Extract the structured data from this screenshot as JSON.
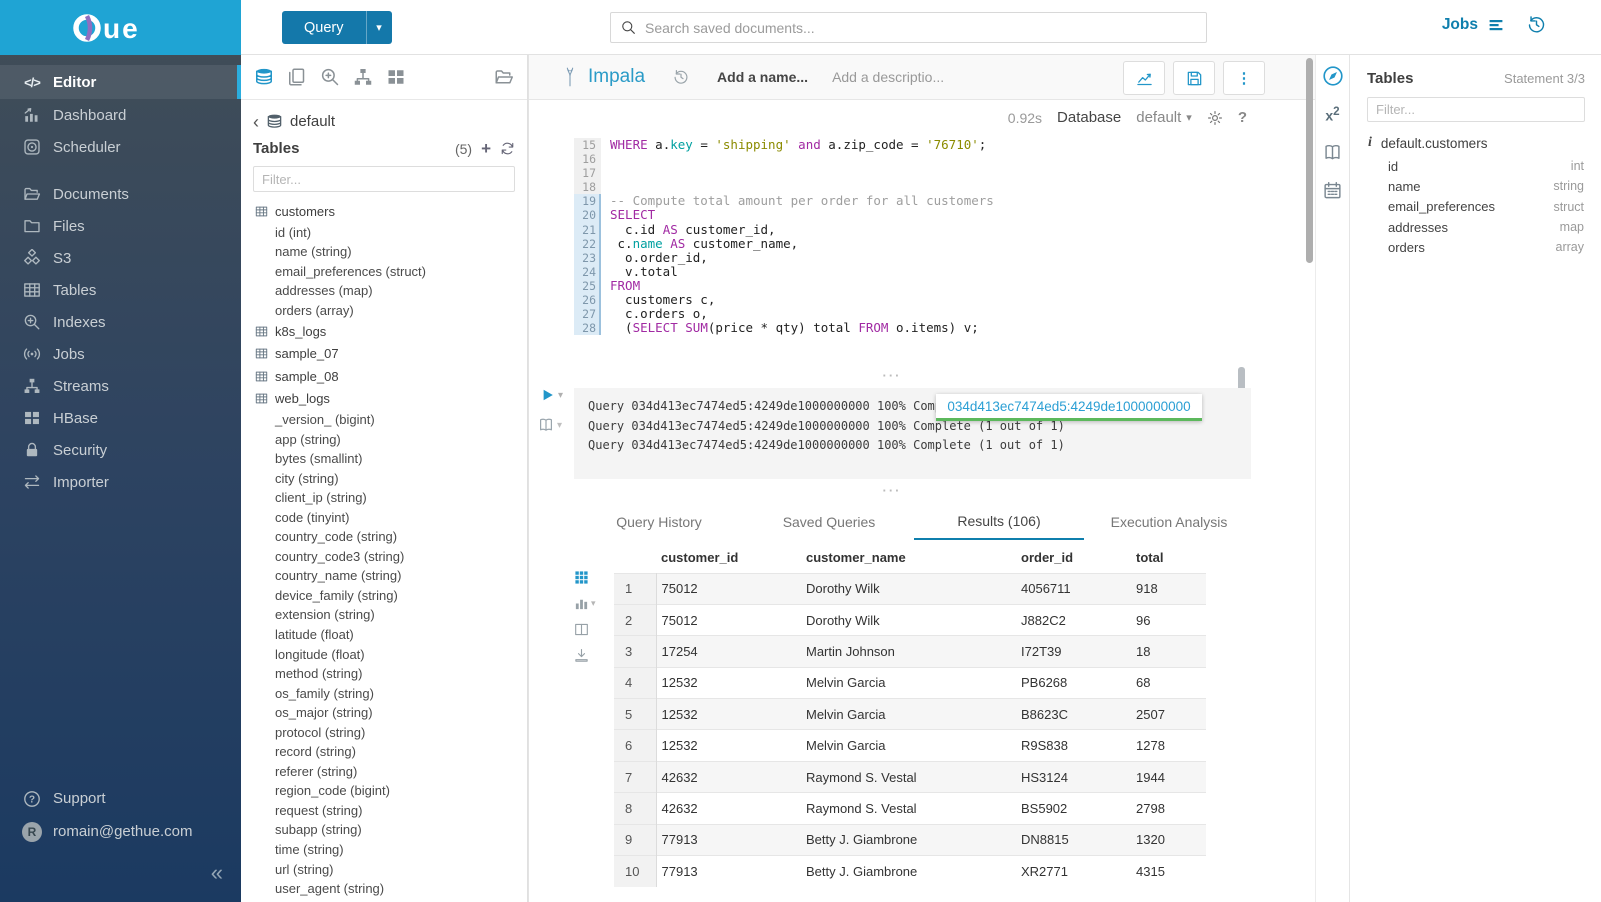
{
  "brand": {
    "logo_text": "hue",
    "logo_suffix": "ue"
  },
  "topbar": {
    "query_button": "Query",
    "query_caret": "▾",
    "search_placeholder": "Search saved documents...",
    "jobs_label": "Jobs"
  },
  "sidebar": {
    "items": [
      {
        "label": "Editor",
        "icon": "code-icon",
        "active": true
      },
      {
        "label": "Dashboard",
        "icon": "dashboard-icon"
      },
      {
        "label": "Scheduler",
        "icon": "scheduler-icon"
      },
      {
        "label": "Documents",
        "icon": "documents-icon",
        "gap": true
      },
      {
        "label": "Files",
        "icon": "folder-icon"
      },
      {
        "label": "S3",
        "icon": "s3-icon"
      },
      {
        "label": "Tables",
        "icon": "tables-icon"
      },
      {
        "label": "Indexes",
        "icon": "indexes-icon"
      },
      {
        "label": "Jobs",
        "icon": "jobs-icon"
      },
      {
        "label": "Streams",
        "icon": "streams-icon"
      },
      {
        "label": "HBase",
        "icon": "hbase-icon"
      },
      {
        "label": "Security",
        "icon": "security-icon"
      },
      {
        "label": "Importer",
        "icon": "importer-icon"
      }
    ],
    "support_label": "Support",
    "user_email": "romain@gethue.com",
    "user_avatar": "R",
    "collapse_icon": "«"
  },
  "left_assist": {
    "database": "default",
    "tables_header": "Tables",
    "tables_count": "(5)",
    "add_label": "+",
    "filter_placeholder": "Filter...",
    "tree": [
      {
        "name": "customers",
        "columns": [
          "id (int)",
          "name (string)",
          "email_preferences (struct)",
          "addresses (map)",
          "orders (array)"
        ]
      },
      {
        "name": "k8s_logs",
        "columns": []
      },
      {
        "name": "sample_07",
        "columns": []
      },
      {
        "name": "sample_08",
        "columns": []
      },
      {
        "name": "web_logs",
        "columns": [
          "_version_ (bigint)",
          "app (string)",
          "bytes (smallint)",
          "city (string)",
          "client_ip (string)",
          "code (tinyint)",
          "country_code (string)",
          "country_code3 (string)",
          "country_name (string)",
          "device_family (string)",
          "extension (string)",
          "latitude (float)",
          "longitude (float)",
          "method (string)",
          "os_family (string)",
          "os_major (string)",
          "protocol (string)",
          "record (string)",
          "referer (string)",
          "region_code (bigint)",
          "request (string)",
          "subapp (string)",
          "time (string)",
          "url (string)",
          "user_agent (string)"
        ]
      }
    ]
  },
  "editor": {
    "engine": "Impala",
    "name_placeholder": "Add a name...",
    "description_placeholder": "Add a descriptio...",
    "duration": "0.92s",
    "database_label": "Database",
    "database_value": "default",
    "code_lines": [
      {
        "n": "15",
        "active": false,
        "tokens": [
          [
            "k",
            "WHERE"
          ],
          [
            "d",
            " a."
          ],
          [
            "v",
            "key"
          ],
          [
            "d",
            " = "
          ],
          [
            "s",
            "'shipping'"
          ],
          [
            "k",
            " and"
          ],
          [
            "d",
            " a.zip_code = "
          ],
          [
            "s",
            "'76710'"
          ],
          [
            "d",
            ";"
          ]
        ]
      },
      {
        "n": "16",
        "active": false,
        "tokens": []
      },
      {
        "n": "17",
        "active": false,
        "tokens": []
      },
      {
        "n": "18",
        "active": false,
        "tokens": []
      },
      {
        "n": "19",
        "active": true,
        "tokens": [
          [
            "c",
            "-- Compute total amount per order for all customers"
          ]
        ]
      },
      {
        "n": "20",
        "active": true,
        "tokens": [
          [
            "k",
            "SELECT"
          ]
        ]
      },
      {
        "n": "21",
        "active": true,
        "tokens": [
          [
            "d",
            "  c.id "
          ],
          [
            "k",
            "AS"
          ],
          [
            "d",
            " customer_id,"
          ]
        ]
      },
      {
        "n": "22",
        "active": true,
        "tokens": [
          [
            "d",
            " c."
          ],
          [
            "v",
            "name"
          ],
          [
            "d",
            " "
          ],
          [
            "k",
            "AS"
          ],
          [
            "d",
            " customer_name,"
          ]
        ]
      },
      {
        "n": "23",
        "active": true,
        "tokens": [
          [
            "d",
            "  o.order_id,"
          ]
        ]
      },
      {
        "n": "24",
        "active": true,
        "tokens": [
          [
            "d",
            "  v.total"
          ]
        ]
      },
      {
        "n": "25",
        "active": true,
        "tokens": [
          [
            "k",
            "FROM"
          ]
        ]
      },
      {
        "n": "26",
        "active": true,
        "tokens": [
          [
            "d",
            "  customers c,"
          ]
        ]
      },
      {
        "n": "27",
        "active": true,
        "tokens": [
          [
            "d",
            "  c.orders o,"
          ]
        ]
      },
      {
        "n": "28",
        "active": true,
        "tokens": [
          [
            "d",
            "  ("
          ],
          [
            "k",
            "SELECT"
          ],
          [
            "d",
            " "
          ],
          [
            "k",
            "SUM"
          ],
          [
            "d",
            "(price * qty) total "
          ],
          [
            "k",
            "FROM"
          ],
          [
            "d",
            " o.items) v;"
          ]
        ]
      }
    ],
    "logs": [
      "Query 034d413ec7474ed5:4249de1000000000 100% Complete (1 out of 1)",
      "Query 034d413ec7474ed5:4249de1000000000 100% Complete (1 out of 1)",
      "Query 034d413ec7474ed5:4249de1000000000 100% Complete (1 out of 1)"
    ],
    "log_tooltip": "034d413ec7474ed5:4249de1000000000",
    "tabs": [
      {
        "label": "Query History",
        "active": false
      },
      {
        "label": "Saved Queries",
        "active": false
      },
      {
        "label": "Results (106)",
        "active": true
      },
      {
        "label": "Execution Analysis",
        "active": false
      }
    ],
    "results": {
      "columns": [
        "customer_id",
        "customer_name",
        "order_id",
        "total"
      ],
      "rows": [
        [
          "1",
          "75012",
          "Dorothy Wilk",
          "4056711",
          "918"
        ],
        [
          "2",
          "75012",
          "Dorothy Wilk",
          "J882C2",
          "96"
        ],
        [
          "3",
          "17254",
          "Martin Johnson",
          "I72T39",
          "18"
        ],
        [
          "4",
          "12532",
          "Melvin Garcia",
          "PB6268",
          "68"
        ],
        [
          "5",
          "12532",
          "Melvin Garcia",
          "B8623C",
          "2507"
        ],
        [
          "6",
          "12532",
          "Melvin Garcia",
          "R9S838",
          "1278"
        ],
        [
          "7",
          "42632",
          "Raymond S. Vestal",
          "HS3124",
          "1944"
        ],
        [
          "8",
          "42632",
          "Raymond S. Vestal",
          "BS5902",
          "2798"
        ],
        [
          "9",
          "77913",
          "Betty J. Giambrone",
          "DN8815",
          "1320"
        ],
        [
          "10",
          "77913",
          "Betty J. Giambrone",
          "XR2771",
          "4315"
        ]
      ]
    }
  },
  "right_assist": {
    "title": "Tables",
    "statement": "Statement 3/3",
    "filter_placeholder": "Filter...",
    "table_name": "default.customers",
    "columns": [
      {
        "name": "id",
        "type": "int"
      },
      {
        "name": "name",
        "type": "string"
      },
      {
        "name": "email_preferences",
        "type": "struct"
      },
      {
        "name": "addresses",
        "type": "map"
      },
      {
        "name": "orders",
        "type": "array"
      }
    ]
  },
  "icons": {
    "search-icon": "magnifier",
    "jobs-list-icon": "list-lines",
    "history-icon": "circular-arrow-clock",
    "database-icon": "db-cylinder",
    "copy-documents-icon": "two-pages",
    "zoom-in-icon": "magnifier-plus",
    "sitemap-icon": "node-tree",
    "grid-icon": "four-squares",
    "folder-documents-icon": "open-folder",
    "chevron-left-icon": "‹",
    "plus-icon": "+",
    "refresh-icon": "circular-arrows",
    "table-icon": "grid-table",
    "play-icon": "▶",
    "book-icon": "open-book",
    "chart-icon": "line-chart",
    "save-icon": "floppy",
    "kebab-icon": "⋮",
    "gear-icon": "cog",
    "help-icon": "?",
    "compass-icon": "compass-needle",
    "functions-icon": "x²",
    "docs-icon": "book",
    "calendar-icon": "calendar",
    "info-icon": "i",
    "grid9-icon": "3x3-squares",
    "barchart-icon": "bars",
    "columns-icon": "split-rect",
    "download-icon": "arrow-tray",
    "caret-down-icon": "▾",
    "collapse-icon": "«"
  },
  "colors": {
    "accent": "#0f7fad",
    "icon_blue": "#2296c9",
    "logo_cyan": "#1fa4d4",
    "status_green": "#5cb85c",
    "keyword": "#a12aa3",
    "string": "#8b8b00",
    "reserved": "#00a0a0"
  }
}
